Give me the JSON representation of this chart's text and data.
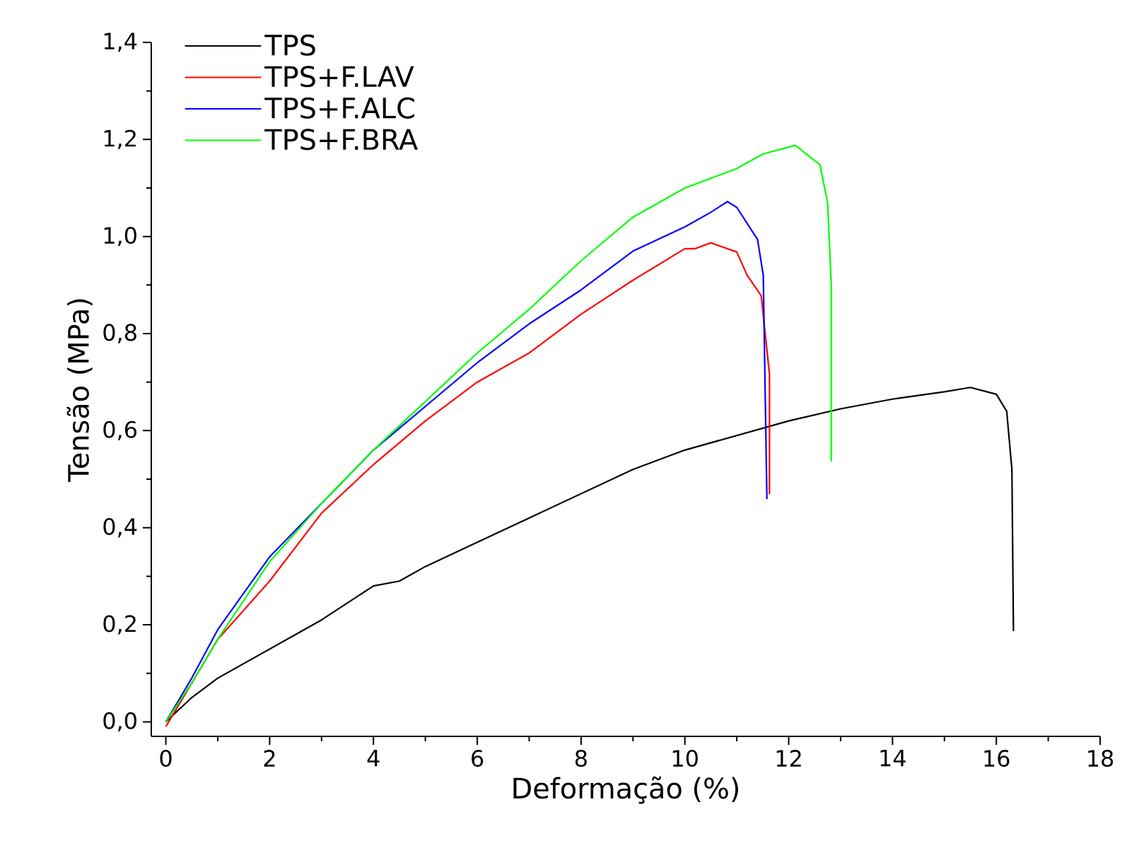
{
  "chart_data": {
    "type": "line",
    "xlabel": "Deformação (%)",
    "ylabel": "Tensão (MPa)",
    "xlim": [
      -0.28,
      18
    ],
    "ylim": [
      -0.03,
      1.4
    ],
    "xticks": [
      0,
      2,
      4,
      6,
      8,
      10,
      12,
      14,
      16,
      18
    ],
    "yticks": [
      {
        "value": 0,
        "label": "0,0"
      },
      {
        "value": 0.2,
        "label": "0,2"
      },
      {
        "value": 0.4,
        "label": "0,4"
      },
      {
        "value": 0.6,
        "label": "0,6"
      },
      {
        "value": 0.8,
        "label": "0,8"
      },
      {
        "value": 1.0,
        "label": "1,0"
      },
      {
        "value": 1.2,
        "label": "1,2"
      },
      {
        "value": 1.4,
        "label": "1,4"
      }
    ],
    "legend": "top left",
    "grid": false,
    "marker": "none",
    "line_style": "solid",
    "series": [
      {
        "name": "TPS",
        "color": "#000000",
        "x": [
          0,
          0.1,
          0.5,
          1,
          2,
          3,
          4,
          4.5,
          5,
          6,
          7,
          8,
          9,
          10,
          11,
          12,
          13,
          14,
          15,
          15.5,
          16,
          16.2,
          16.3,
          16.33
        ],
        "values": [
          0,
          0.01,
          0.05,
          0.09,
          0.15,
          0.21,
          0.28,
          0.29,
          0.32,
          0.37,
          0.42,
          0.47,
          0.52,
          0.56,
          0.59,
          0.62,
          0.645,
          0.665,
          0.68,
          0.689,
          0.675,
          0.64,
          0.52,
          0.187
        ]
      },
      {
        "name": "TPS+F.LAV",
        "color": "#ff0000",
        "x": [
          0,
          0.5,
          1,
          2,
          3,
          4,
          5,
          6,
          7,
          8,
          9,
          10,
          10.2,
          10.5,
          11,
          11.2,
          11.47,
          11.63,
          11.63
        ],
        "values": [
          -0.01,
          0.08,
          0.17,
          0.29,
          0.43,
          0.53,
          0.62,
          0.7,
          0.76,
          0.84,
          0.91,
          0.975,
          0.975,
          0.987,
          0.968,
          0.92,
          0.878,
          0.716,
          0.469
        ]
      },
      {
        "name": "TPS+F.ALC",
        "color": "#0000ff",
        "x": [
          0,
          0.5,
          1,
          2,
          3,
          4,
          5,
          6,
          7,
          8,
          9,
          10,
          10.5,
          10.82,
          11,
          11.4,
          11.51,
          11.58
        ],
        "values": [
          0,
          0.09,
          0.19,
          0.34,
          0.45,
          0.56,
          0.65,
          0.74,
          0.82,
          0.89,
          0.97,
          1.02,
          1.05,
          1.072,
          1.06,
          0.994,
          0.92,
          0.459
        ]
      },
      {
        "name": "TPS+F.BRA",
        "color": "#00ff00",
        "x": [
          0,
          0.5,
          1,
          2,
          3,
          4,
          5,
          6,
          7,
          8,
          9,
          10,
          11,
          11.5,
          12.13,
          12.6,
          12.75,
          12.82,
          12.82
        ],
        "values": [
          0,
          0.08,
          0.17,
          0.33,
          0.45,
          0.56,
          0.66,
          0.76,
          0.85,
          0.95,
          1.04,
          1.1,
          1.14,
          1.17,
          1.188,
          1.148,
          1.07,
          0.9,
          0.536
        ]
      }
    ]
  }
}
